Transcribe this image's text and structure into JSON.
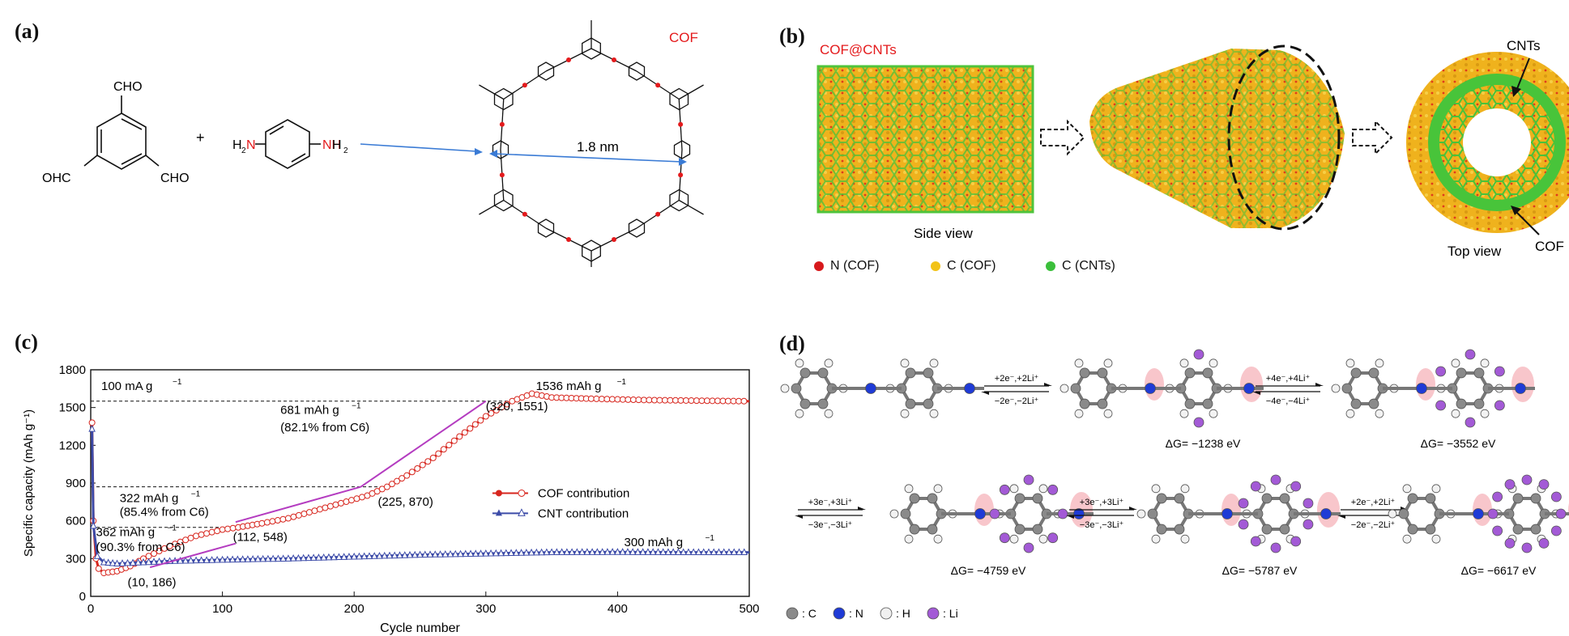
{
  "panels": {
    "a": {
      "label": "(a)",
      "reactant1": {
        "top": "CHO",
        "left": "OHC",
        "right": "CHO"
      },
      "plus": "+",
      "reactant2": {
        "left": "H",
        "left_sub": "2",
        "left_n": "N",
        "right_n": "NH",
        "right_sub": "2"
      },
      "product_label": "COF",
      "pore_size": "1.8 nm",
      "colors": {
        "nitrogen": "#e41a1c",
        "arrow": "#3a7bd5"
      }
    },
    "b": {
      "label": "(b)",
      "title": "COF@CNTs",
      "side_view": "Side view",
      "top_view": "Top view",
      "cnts_label": "CNTs",
      "cof_label": "COF",
      "legend": [
        {
          "text": "N (COF)",
          "color": "#d7191c"
        },
        {
          "text": "C (COF)",
          "color": "#f2c318"
        },
        {
          "text": "C (CNTs)",
          "color": "#3bbf3b"
        }
      ]
    },
    "c": {
      "label": "(c)",
      "annotations": {
        "rate": "100 mA g",
        "rate_sup": "−1",
        "top_right": "1536 mAh g",
        "top_right_sup": "−1",
        "cnt_right": "300 mAh g",
        "cnt_right_sup": "−1",
        "a681": "681 mAh g",
        "a681_sup": "−1",
        "a681b": "(82.1% from C",
        "a681b_sub": "6",
        "a681b_end": ")",
        "a322": "322 mAh g",
        "a322_sup": "−1",
        "a322b": "(85.4% from C",
        "a322b_sub": "6",
        "a322b_end": ")",
        "a362": "362 mAh g",
        "a362_sup": "−1",
        "a362b": "(90.3% from C",
        "a362b_sub": "6",
        "a362b_end": ")",
        "p1": "(10, 186)",
        "p2": "(112, 548)",
        "p3": "(225, 870)",
        "p4": "(320, 1551)"
      }
    },
    "d": {
      "label": "(d)",
      "steps": [
        {
          "fwd": "+2e⁻,+2Li⁺",
          "rev": "−2e⁻,−2Li⁺"
        },
        {
          "fwd": "+4e⁻,+4Li⁺",
          "rev": "−4e⁻,−4Li⁺"
        },
        {
          "fwd": "+3e⁻,+3Li⁺",
          "rev": "−3e⁻,−3Li⁺"
        },
        {
          "fwd": "+3e⁻,+3Li⁺",
          "rev": "−3e⁻,−3Li⁺"
        },
        {
          "fwd": "+2e⁻,+2Li⁺",
          "rev": "−2e⁻,−2Li⁺"
        }
      ],
      "energies": [
        {
          "prefix": "Δ",
          "g": "G",
          "value": "= −1238 eV"
        },
        {
          "prefix": "Δ",
          "g": "G",
          "value": "= −3552 eV"
        },
        {
          "prefix": "Δ",
          "g": "G",
          "value": "= −4759 eV"
        },
        {
          "prefix": "Δ",
          "g": "G",
          "value": "= −5787 eV"
        },
        {
          "prefix": "Δ",
          "g": "G",
          "value": "= −6617 eV"
        }
      ],
      "legend": [
        {
          "text": ": C",
          "color": "#8a8a8a"
        },
        {
          "text": ": N",
          "color": "#1f3bd6"
        },
        {
          "text": ": H",
          "color": "#f0f0f0"
        },
        {
          "text": ": Li",
          "color": "#a35ad6"
        }
      ]
    }
  },
  "chart_data": {
    "type": "line",
    "xlabel": "Cycle number",
    "ylabel": "Specific capacity (mAh g⁻¹)",
    "xlim": [
      0,
      500
    ],
    "ylim": [
      0,
      1800
    ],
    "xticks": [
      0,
      100,
      200,
      300,
      400,
      500
    ],
    "yticks": [
      0,
      300,
      600,
      900,
      1200,
      1500,
      1800
    ],
    "grid": false,
    "legend_position": "center-right",
    "series": [
      {
        "name": "COF contribution",
        "color": "#d7261e",
        "marker": "circle",
        "x": [
          1,
          2,
          4,
          6,
          10,
          20,
          30,
          40,
          60,
          80,
          100,
          112,
          130,
          150,
          170,
          190,
          210,
          225,
          240,
          260,
          280,
          300,
          320,
          335,
          350,
          380,
          420,
          460,
          500
        ],
        "y": [
          1380,
          600,
          300,
          220,
          186,
          200,
          240,
          300,
          400,
          480,
          530,
          548,
          580,
          620,
          680,
          740,
          800,
          870,
          960,
          1100,
          1270,
          1430,
          1551,
          1610,
          1580,
          1570,
          1560,
          1555,
          1550
        ]
      },
      {
        "name": "CNT contribution",
        "color": "#3c4ba8",
        "marker": "triangle",
        "x": [
          1,
          2,
          5,
          10,
          20,
          40,
          60,
          100,
          150,
          200,
          250,
          300,
          350,
          400,
          450,
          500
        ],
        "y": [
          1330,
          560,
          320,
          270,
          260,
          270,
          280,
          290,
          300,
          315,
          330,
          340,
          350,
          352,
          350,
          350
        ]
      }
    ],
    "reference_lines": [
      {
        "y": 1551,
        "from": 0,
        "to": 320
      },
      {
        "y": 870,
        "from": 0,
        "to": 225
      },
      {
        "y": 548,
        "from": 0,
        "to": 112
      }
    ]
  }
}
